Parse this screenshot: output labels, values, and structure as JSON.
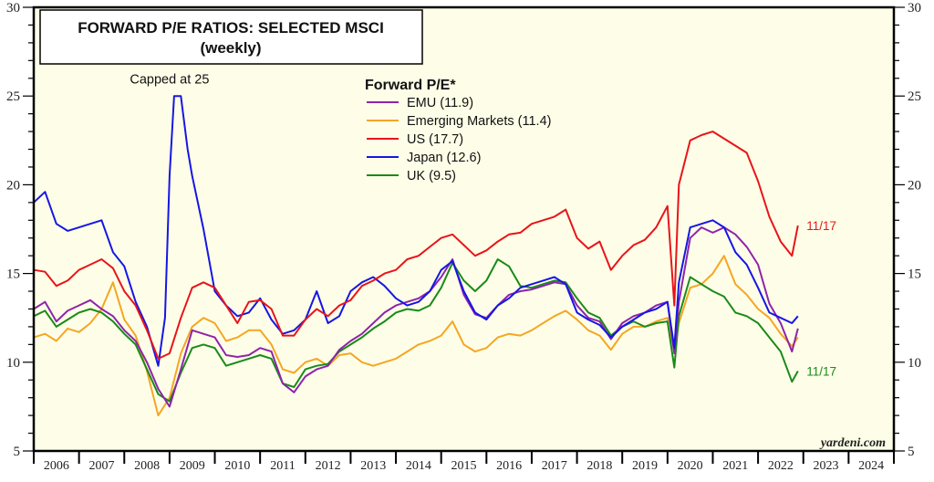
{
  "chart_data": {
    "type": "line",
    "title": "FORWARD P/E RATIOS: SELECTED MSCI",
    "subtitle": "(weekly)",
    "xlabel": "",
    "ylabel": "",
    "xlim": [
      2006,
      2025
    ],
    "ylim": [
      5,
      30
    ],
    "y_ticks": [
      5,
      10,
      15,
      20,
      25,
      30
    ],
    "x_tick_labels": [
      "2006",
      "2007",
      "2008",
      "2009",
      "2010",
      "2011",
      "2012",
      "2013",
      "2014",
      "2015",
      "2016",
      "2017",
      "2018",
      "2019",
      "2020",
      "2021",
      "2022",
      "2023",
      "2024"
    ],
    "grid": false,
    "legend": {
      "title": "Forward P/E*",
      "placement": "top-center"
    },
    "annotations": [
      {
        "text": "Capped at 25",
        "x": 2009.0,
        "y": 25.7
      },
      {
        "text": "11/17",
        "series": "US",
        "x": 2022.95,
        "y": 17.7
      },
      {
        "text": "11/17",
        "series": "UK",
        "x": 2022.95,
        "y": 9.5
      }
    ],
    "source": "yardeni.com",
    "series": [
      {
        "name": "EMU",
        "legend_label": "EMU (11.9)",
        "color": "#8e24aa",
        "x": [
          2006.0,
          2006.25,
          2006.5,
          2006.75,
          2007.0,
          2007.25,
          2007.5,
          2007.75,
          2008.0,
          2008.25,
          2008.5,
          2008.75,
          2009.0,
          2009.25,
          2009.5,
          2009.75,
          2010.0,
          2010.25,
          2010.5,
          2010.75,
          2011.0,
          2011.25,
          2011.5,
          2011.75,
          2012.0,
          2012.25,
          2012.5,
          2012.75,
          2013.0,
          2013.25,
          2013.5,
          2013.75,
          2014.0,
          2014.25,
          2014.5,
          2014.75,
          2015.0,
          2015.25,
          2015.5,
          2015.75,
          2016.0,
          2016.25,
          2016.5,
          2016.75,
          2017.0,
          2017.25,
          2017.5,
          2017.75,
          2018.0,
          2018.25,
          2018.5,
          2018.75,
          2019.0,
          2019.25,
          2019.5,
          2019.75,
          2020.0,
          2020.15,
          2020.25,
          2020.5,
          2020.75,
          2021.0,
          2021.25,
          2021.5,
          2021.75,
          2022.0,
          2022.25,
          2022.5,
          2022.75,
          2022.88
        ],
        "values": [
          13.0,
          13.4,
          12.3,
          12.9,
          13.2,
          13.5,
          13.0,
          12.6,
          11.8,
          11.2,
          10.0,
          8.5,
          7.5,
          9.6,
          11.8,
          11.6,
          11.4,
          10.4,
          10.3,
          10.4,
          10.8,
          10.6,
          8.8,
          8.3,
          9.2,
          9.6,
          9.8,
          10.7,
          11.2,
          11.6,
          12.2,
          12.8,
          13.2,
          13.4,
          13.6,
          14.0,
          14.8,
          15.8,
          13.8,
          12.7,
          12.5,
          13.2,
          13.8,
          14.0,
          14.1,
          14.3,
          14.5,
          14.4,
          13.2,
          12.5,
          12.3,
          11.3,
          12.2,
          12.6,
          12.8,
          13.2,
          13.4,
          10.5,
          13.4,
          17.0,
          17.6,
          17.3,
          17.6,
          17.2,
          16.5,
          15.5,
          13.3,
          12.2,
          10.6,
          11.9
        ]
      },
      {
        "name": "Emerging Markets",
        "legend_label": "Emerging Markets (11.4)",
        "color": "#f5a623",
        "x": [
          2006.0,
          2006.25,
          2006.5,
          2006.75,
          2007.0,
          2007.25,
          2007.5,
          2007.75,
          2008.0,
          2008.25,
          2008.5,
          2008.75,
          2009.0,
          2009.25,
          2009.5,
          2009.75,
          2010.0,
          2010.25,
          2010.5,
          2010.75,
          2011.0,
          2011.25,
          2011.5,
          2011.75,
          2012.0,
          2012.25,
          2012.5,
          2012.75,
          2013.0,
          2013.25,
          2013.5,
          2013.75,
          2014.0,
          2014.25,
          2014.5,
          2014.75,
          2015.0,
          2015.25,
          2015.5,
          2015.75,
          2016.0,
          2016.25,
          2016.5,
          2016.75,
          2017.0,
          2017.25,
          2017.5,
          2017.75,
          2018.0,
          2018.25,
          2018.5,
          2018.75,
          2019.0,
          2019.25,
          2019.5,
          2019.75,
          2020.0,
          2020.15,
          2020.25,
          2020.5,
          2020.75,
          2021.0,
          2021.25,
          2021.5,
          2021.75,
          2022.0,
          2022.25,
          2022.5,
          2022.75,
          2022.88
        ],
        "values": [
          11.4,
          11.6,
          11.2,
          11.9,
          11.7,
          12.2,
          13.0,
          14.5,
          12.4,
          11.5,
          9.5,
          7.0,
          8.0,
          10.5,
          12.0,
          12.5,
          12.2,
          11.2,
          11.4,
          11.8,
          11.8,
          11.0,
          9.6,
          9.4,
          10.0,
          10.2,
          9.8,
          10.4,
          10.5,
          10.0,
          9.8,
          10.0,
          10.2,
          10.6,
          11.0,
          11.2,
          11.5,
          12.3,
          11.0,
          10.6,
          10.8,
          11.4,
          11.6,
          11.5,
          11.8,
          12.2,
          12.6,
          12.9,
          12.4,
          11.8,
          11.5,
          10.7,
          11.6,
          12.0,
          12.0,
          12.3,
          12.5,
          10.6,
          12.2,
          14.2,
          14.4,
          15.0,
          16.0,
          14.4,
          13.8,
          13.0,
          12.5,
          11.6,
          10.9,
          11.4
        ]
      },
      {
        "name": "US",
        "legend_label": "US (17.7)",
        "color": "#e8141a",
        "x": [
          2006.0,
          2006.25,
          2006.5,
          2006.75,
          2007.0,
          2007.25,
          2007.5,
          2007.75,
          2008.0,
          2008.25,
          2008.5,
          2008.75,
          2009.0,
          2009.25,
          2009.5,
          2009.75,
          2010.0,
          2010.25,
          2010.5,
          2010.75,
          2011.0,
          2011.25,
          2011.5,
          2011.75,
          2012.0,
          2012.25,
          2012.5,
          2012.75,
          2013.0,
          2013.25,
          2013.5,
          2013.75,
          2014.0,
          2014.25,
          2014.5,
          2014.75,
          2015.0,
          2015.25,
          2015.5,
          2015.75,
          2016.0,
          2016.25,
          2016.5,
          2016.75,
          2017.0,
          2017.25,
          2017.5,
          2017.75,
          2018.0,
          2018.25,
          2018.5,
          2018.75,
          2019.0,
          2019.25,
          2019.5,
          2019.75,
          2020.0,
          2020.15,
          2020.25,
          2020.5,
          2020.75,
          2021.0,
          2021.25,
          2021.5,
          2021.75,
          2022.0,
          2022.25,
          2022.5,
          2022.75,
          2022.88
        ],
        "values": [
          15.2,
          15.1,
          14.3,
          14.6,
          15.2,
          15.5,
          15.8,
          15.3,
          14.0,
          13.2,
          11.8,
          10.2,
          10.5,
          12.5,
          14.2,
          14.5,
          14.2,
          13.2,
          12.2,
          13.4,
          13.5,
          13.0,
          11.5,
          11.5,
          12.4,
          13.0,
          12.6,
          13.2,
          13.5,
          14.3,
          14.6,
          15.0,
          15.2,
          15.8,
          16.0,
          16.5,
          17.0,
          17.2,
          16.6,
          16.0,
          16.3,
          16.8,
          17.2,
          17.3,
          17.8,
          18.0,
          18.2,
          18.6,
          17.0,
          16.4,
          16.8,
          15.2,
          16.0,
          16.6,
          16.9,
          17.6,
          18.8,
          13.2,
          20.0,
          22.5,
          22.8,
          23.0,
          22.6,
          22.2,
          21.8,
          20.2,
          18.2,
          16.8,
          16.0,
          17.7
        ]
      },
      {
        "name": "Japan",
        "legend_label": "Japan (12.6)",
        "color": "#1616e6",
        "x": [
          2006.0,
          2006.25,
          2006.5,
          2006.75,
          2007.0,
          2007.25,
          2007.5,
          2007.75,
          2008.0,
          2008.25,
          2008.5,
          2008.75,
          2008.9,
          2009.0,
          2009.1,
          2009.25,
          2009.4,
          2009.5,
          2009.75,
          2010.0,
          2010.25,
          2010.5,
          2010.75,
          2011.0,
          2011.25,
          2011.5,
          2011.75,
          2012.0,
          2012.25,
          2012.5,
          2012.75,
          2013.0,
          2013.25,
          2013.5,
          2013.75,
          2014.0,
          2014.25,
          2014.5,
          2014.75,
          2015.0,
          2015.25,
          2015.5,
          2015.75,
          2016.0,
          2016.25,
          2016.5,
          2016.75,
          2017.0,
          2017.25,
          2017.5,
          2017.75,
          2018.0,
          2018.25,
          2018.5,
          2018.75,
          2019.0,
          2019.25,
          2019.5,
          2019.75,
          2020.0,
          2020.15,
          2020.25,
          2020.5,
          2020.75,
          2021.0,
          2021.25,
          2021.5,
          2021.75,
          2022.0,
          2022.25,
          2022.5,
          2022.75,
          2022.88
        ],
        "values": [
          19.0,
          19.6,
          17.8,
          17.4,
          17.6,
          17.8,
          18.0,
          16.2,
          15.4,
          13.4,
          12.0,
          9.8,
          12.5,
          20.5,
          25.0,
          25.0,
          22.0,
          20.5,
          17.5,
          14.0,
          13.2,
          12.6,
          12.8,
          13.6,
          12.4,
          11.6,
          11.8,
          12.4,
          14.0,
          12.2,
          12.6,
          14.0,
          14.5,
          14.8,
          14.3,
          13.6,
          13.2,
          13.4,
          14.0,
          15.2,
          15.7,
          14.0,
          12.8,
          12.4,
          13.2,
          13.6,
          14.2,
          14.4,
          14.6,
          14.8,
          14.4,
          12.8,
          12.4,
          12.1,
          11.4,
          12.0,
          12.4,
          12.8,
          13.0,
          13.4,
          10.8,
          14.5,
          17.6,
          17.8,
          18.0,
          17.6,
          16.2,
          15.5,
          14.2,
          12.8,
          12.5,
          12.2,
          12.6
        ]
      },
      {
        "name": "UK",
        "legend_label": "UK (9.5)",
        "color": "#1a8a1a",
        "x": [
          2006.0,
          2006.25,
          2006.5,
          2006.75,
          2007.0,
          2007.25,
          2007.5,
          2007.75,
          2008.0,
          2008.25,
          2008.5,
          2008.75,
          2009.0,
          2009.25,
          2009.5,
          2009.75,
          2010.0,
          2010.25,
          2010.5,
          2010.75,
          2011.0,
          2011.25,
          2011.5,
          2011.75,
          2012.0,
          2012.25,
          2012.5,
          2012.75,
          2013.0,
          2013.25,
          2013.5,
          2013.75,
          2014.0,
          2014.25,
          2014.5,
          2014.75,
          2015.0,
          2015.25,
          2015.5,
          2015.75,
          2016.0,
          2016.25,
          2016.5,
          2016.75,
          2017.0,
          2017.25,
          2017.5,
          2017.75,
          2018.0,
          2018.25,
          2018.5,
          2018.75,
          2019.0,
          2019.25,
          2019.5,
          2019.75,
          2020.0,
          2020.15,
          2020.25,
          2020.5,
          2020.75,
          2021.0,
          2021.25,
          2021.5,
          2021.75,
          2022.0,
          2022.25,
          2022.5,
          2022.75,
          2022.88
        ],
        "values": [
          12.6,
          12.9,
          12.0,
          12.4,
          12.8,
          13.0,
          12.8,
          12.3,
          11.6,
          11.0,
          9.6,
          8.2,
          7.8,
          9.4,
          10.8,
          11.0,
          10.8,
          9.8,
          10.0,
          10.2,
          10.4,
          10.2,
          8.8,
          8.6,
          9.6,
          9.8,
          9.9,
          10.6,
          11.0,
          11.4,
          11.9,
          12.3,
          12.8,
          13.0,
          12.9,
          13.2,
          14.2,
          15.6,
          14.6,
          14.0,
          14.6,
          15.8,
          15.4,
          14.3,
          14.2,
          14.4,
          14.6,
          14.5,
          13.6,
          12.8,
          12.5,
          11.5,
          12.0,
          12.3,
          12.0,
          12.2,
          12.3,
          9.7,
          12.6,
          14.8,
          14.4,
          14.0,
          13.7,
          12.8,
          12.6,
          12.2,
          11.4,
          10.6,
          8.9,
          9.5
        ]
      }
    ]
  }
}
